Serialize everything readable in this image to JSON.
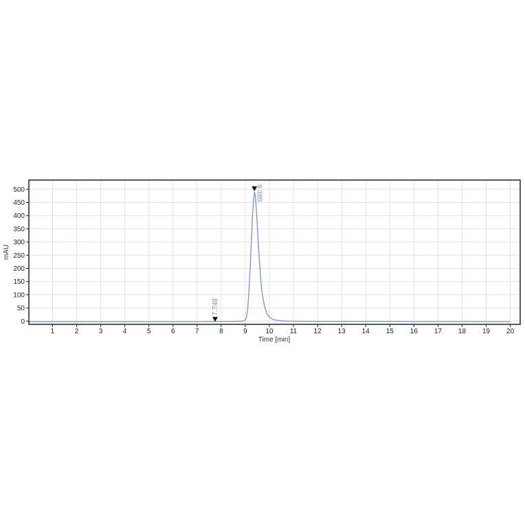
{
  "chart_data": {
    "type": "line",
    "title": "",
    "xlabel": "Time [min]",
    "ylabel": "mAU",
    "xlim": [
      0,
      20
    ],
    "ylim": [
      -13,
      534
    ],
    "x_ticks": [
      "1",
      "2",
      "3",
      "4",
      "5",
      "6",
      "7",
      "8",
      "9",
      "10",
      "11",
      "12",
      "13",
      "14",
      "15",
      "16",
      "17",
      "18",
      "19",
      "20"
    ],
    "y_ticks": [
      "0",
      "50",
      "100",
      "150",
      "200",
      "250",
      "300",
      "350",
      "400",
      "450",
      "500"
    ],
    "grid": true,
    "line_color": "#7a90d8",
    "series": [
      {
        "x": [
          0,
          2,
          4,
          6,
          7.5,
          8.5,
          8.9,
          9.0,
          9.05,
          9.1,
          9.15,
          9.2,
          9.25,
          9.3,
          9.34,
          9.38,
          9.42,
          9.46,
          9.5,
          9.55,
          9.6,
          9.65,
          9.7,
          9.8,
          9.9,
          10.0,
          10.1,
          10.2,
          10.4,
          10.7,
          11,
          12,
          14,
          16,
          18,
          20
        ],
        "y": [
          -2,
          -2,
          -2,
          -2,
          -1.5,
          -1,
          0,
          4,
          15,
          45,
          110,
          200,
          300,
          400,
          460,
          490,
          470,
          420,
          360,
          280,
          210,
          150,
          105,
          55,
          28,
          15,
          9,
          5,
          2,
          0,
          -0.5,
          -1,
          -1,
          -1.5,
          -1.5,
          -2
        ]
      }
    ],
    "peaks": [
      {
        "time": 7.748,
        "label": "7.748",
        "y": 0
      },
      {
        "time": 9.38,
        "label": "9.380",
        "y": 495
      }
    ]
  }
}
